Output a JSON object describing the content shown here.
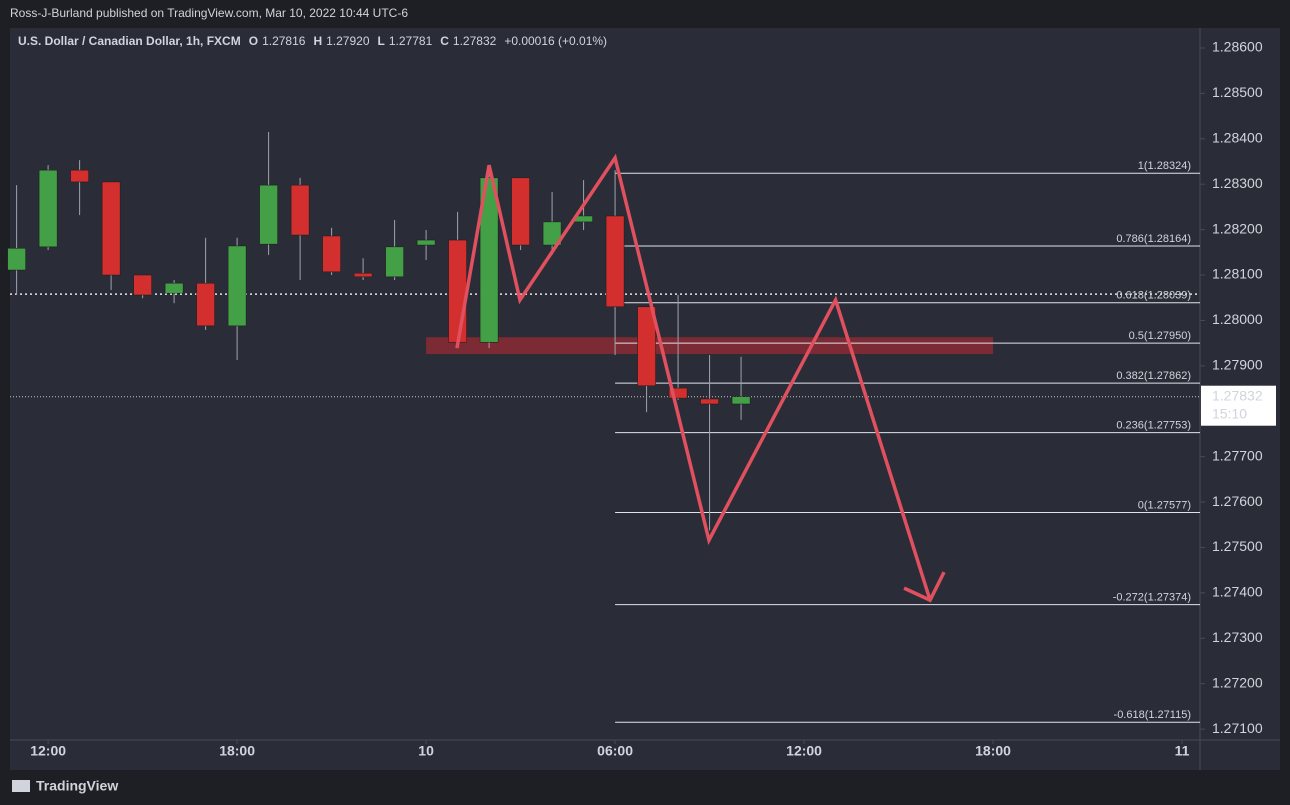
{
  "header": {
    "publisher": "Ross-J-Burland published on TradingView.com, Mar 10, 2022 10:44 UTC-6",
    "brand": "TradingView"
  },
  "chart_data": {
    "type": "candlestick",
    "title": "U.S. Dollar / Canadian Dollar, 1h, FXCM",
    "legend_ohlc": [
      "O",
      "1.27816",
      "H",
      "1.27920",
      "L",
      "1.27781",
      "C",
      "1.27832",
      "+0.00016 (+0.01%)"
    ],
    "x": [
      11,
      12,
      13,
      14,
      15,
      16,
      17,
      18,
      19,
      20,
      21,
      22,
      23,
      24,
      25,
      26,
      27,
      28,
      29,
      30,
      31,
      32,
      33,
      34
    ],
    "series": [
      {
        "up_color": "#43a047",
        "down_color": "#d32f2f",
        "open": [
          1.28111,
          1.28162,
          1.28331,
          1.28305,
          1.281,
          1.2806,
          1.28082,
          1.27988,
          1.28168,
          1.28298,
          1.28186,
          1.28104,
          1.28096,
          1.28166,
          1.28177,
          1.27952,
          1.28314,
          1.28166,
          1.28217,
          1.2823,
          1.2803,
          1.27851,
          1.27827,
          1.27816
        ],
        "high": [
          1.28298,
          1.28342,
          1.28353,
          1.28305,
          1.281,
          1.28089,
          1.28182,
          1.28182,
          1.28415,
          1.28314,
          1.28204,
          1.28137,
          1.28221,
          1.28199,
          1.28239,
          1.28331,
          1.28314,
          1.28283,
          1.28309,
          1.28331,
          1.2803,
          1.28056,
          1.27924,
          1.2792
        ],
        "low": [
          1.28056,
          1.28155,
          1.28232,
          1.28067,
          1.28049,
          1.28038,
          1.27979,
          1.27913,
          1.28144,
          1.28089,
          1.281,
          1.28089,
          1.28089,
          1.28133,
          1.27946,
          1.27939,
          1.28155,
          1.28144,
          1.28199,
          1.27924,
          1.27798,
          1.27825,
          1.27538,
          1.27781
        ],
        "close": [
          1.28159,
          1.28331,
          1.28305,
          1.281,
          1.28056,
          1.28082,
          1.27988,
          1.28164,
          1.28298,
          1.28188,
          1.28107,
          1.28096,
          1.28162,
          1.28177,
          1.27952,
          1.28314,
          1.28166,
          1.28217,
          1.2823,
          1.2803,
          1.27856,
          1.27829,
          1.27816,
          1.27832
        ]
      }
    ],
    "xlim": [
      10.79,
      48.57
    ],
    "ylim": [
      1.27076,
      1.28644
    ],
    "xticks": [
      {
        "value": 12,
        "label": "12:00"
      },
      {
        "value": 18,
        "label": "18:00"
      },
      {
        "value": 24,
        "label": "10"
      },
      {
        "value": 30,
        "label": "06:00"
      },
      {
        "value": 36,
        "label": "12:00"
      },
      {
        "value": 42,
        "label": "18:00"
      },
      {
        "value": 48,
        "label": "11"
      }
    ],
    "yticks": [
      {
        "value": 1.286,
        "label": "1.28600"
      },
      {
        "value": 1.285,
        "label": "1.28500"
      },
      {
        "value": 1.284,
        "label": "1.28400"
      },
      {
        "value": 1.283,
        "label": "1.28300"
      },
      {
        "value": 1.282,
        "label": "1.28200"
      },
      {
        "value": 1.281,
        "label": "1.28100"
      },
      {
        "value": 1.28,
        "label": "1.28000"
      },
      {
        "value": 1.279,
        "label": "1.27900"
      },
      {
        "value": 1.278,
        "label": "1.27800"
      },
      {
        "value": 1.277,
        "label": "1.27700"
      },
      {
        "value": 1.276,
        "label": "1.27600"
      },
      {
        "value": 1.275,
        "label": "1.27500"
      },
      {
        "value": 1.274,
        "label": "1.27400"
      },
      {
        "value": 1.273,
        "label": "1.27300"
      },
      {
        "value": 1.272,
        "label": "1.27200"
      },
      {
        "value": 1.271,
        "label": "1.27100"
      }
    ],
    "fib_start_x": 30,
    "fib_levels": [
      {
        "value": 1.28324,
        "label": "1(1.28324)"
      },
      {
        "value": 1.28164,
        "label": "0.786(1.28164)"
      },
      {
        "value": 1.28039,
        "label": "0.618(1.28039)"
      },
      {
        "value": 1.2795,
        "label": "0.5(1.27950)"
      },
      {
        "value": 1.27862,
        "label": "0.382(1.27862)"
      },
      {
        "value": 1.27753,
        "label": "0.236(1.27753)"
      },
      {
        "value": 1.27577,
        "label": "0(1.27577)"
      },
      {
        "value": 1.27374,
        "label": "-0.272(1.27374)"
      },
      {
        "value": 1.27115,
        "label": "-0.618(1.27115)"
      }
    ],
    "zone": {
      "x": [
        24,
        42
      ],
      "y": [
        1.27926,
        1.27963
      ],
      "color": "#8b2a33"
    },
    "drawing": {
      "color": "#e0505e",
      "x": [
        24.98,
        26.0,
        26.98,
        30.0,
        32.98,
        37.0,
        40.0
      ],
      "y": [
        1.27939,
        1.28342,
        1.28045,
        1.28358,
        1.27516,
        1.28045,
        1.27384
      ]
    },
    "reference_line": 1.28058,
    "last_price": {
      "value": 1.27832,
      "label": "1.27832",
      "countdown": "15:10"
    }
  }
}
